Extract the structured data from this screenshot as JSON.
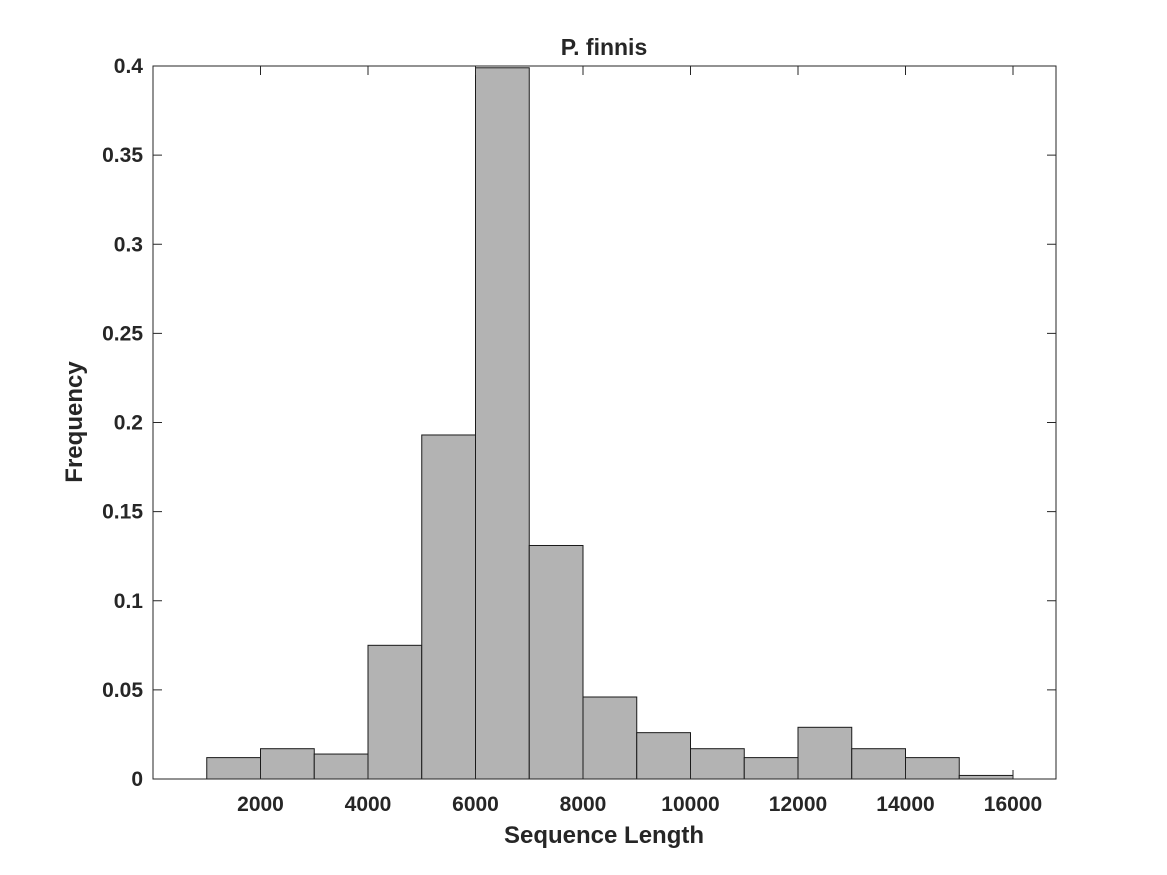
{
  "chart_data": {
    "type": "bar",
    "title": "P. finnis",
    "xlabel": "Sequence Length",
    "ylabel": "Frequency",
    "xlim": [
      0,
      16800
    ],
    "ylim": [
      0,
      0.4
    ],
    "bar_color": "#b3b3b3",
    "edge_color": "#1a1a1a",
    "grid": false,
    "x_ticks": [
      2000,
      4000,
      6000,
      8000,
      10000,
      12000,
      14000,
      16000
    ],
    "x_tick_labels": [
      "2000",
      "4000",
      "6000",
      "8000",
      "10000",
      "12000",
      "14000",
      "16000"
    ],
    "y_ticks": [
      0,
      0.05,
      0.1,
      0.15,
      0.2,
      0.25,
      0.3,
      0.35,
      0.4
    ],
    "y_tick_labels": [
      "0",
      "0.05",
      "0.1",
      "0.15",
      "0.2",
      "0.25",
      "0.3",
      "0.35",
      "0.4"
    ],
    "bin_edges": [
      1000,
      2000,
      3000,
      4000,
      5000,
      6000,
      7000,
      8000,
      9000,
      10000,
      11000,
      12000,
      13000,
      14000,
      15000,
      16000
    ],
    "values": [
      0.012,
      0.017,
      0.014,
      0.075,
      0.193,
      0.399,
      0.131,
      0.046,
      0.026,
      0.017,
      0.012,
      0.029,
      0.017,
      0.012,
      0.002
    ]
  }
}
